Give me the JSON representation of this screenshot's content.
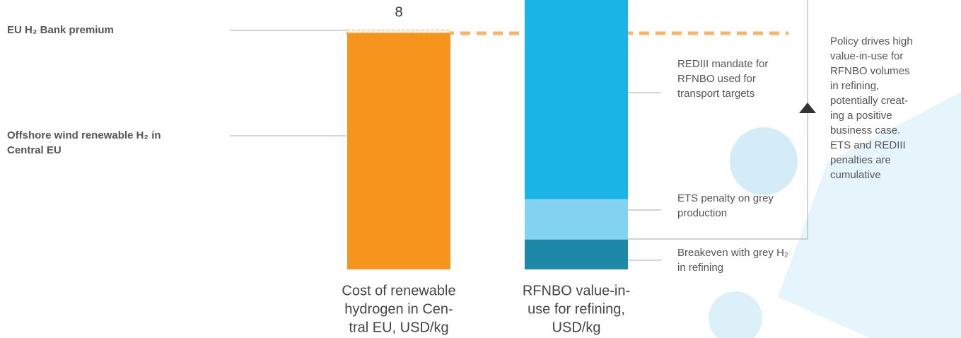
{
  "chart_data": {
    "type": "stacked_bar",
    "categories": [
      [
        "Cost of  renewable",
        "hydrogen in Cen-",
        "tral EU, USD/kg"
      ],
      [
        "RFNBO value-in-",
        "use for refining,",
        "USD/kg"
      ]
    ],
    "total": 8,
    "ylim": [
      0,
      9
    ],
    "series": [
      {
        "name": "Offshore wind renewable H₂ in Central EU",
        "color": "#f7941d",
        "values": [
          7.9,
          null
        ]
      },
      {
        "name": "EU H₂ Bank premium",
        "color": "#fbc58a",
        "values": [
          0.1,
          null
        ]
      },
      {
        "name": "Breakeven with grey H₂ in refining",
        "color": "#1e88a8",
        "values": [
          null,
          1.0
        ]
      },
      {
        "name": "ETS penalty on grey production",
        "color": "#84d2f2",
        "values": [
          null,
          1.35
        ]
      },
      {
        "name": "REDIII mandate for RFNBO used for transport targets",
        "color": "#1ab4e6",
        "values": [
          null,
          6.7
        ]
      }
    ],
    "annotation": [
      "Policy drives high",
      "value-in-use for",
      "RFNBO volumes",
      "in refining,",
      "potentially creat-",
      "ing a positive",
      "business case.",
      "ETS and REDIII",
      "penalties are",
      "cumulative"
    ]
  }
}
